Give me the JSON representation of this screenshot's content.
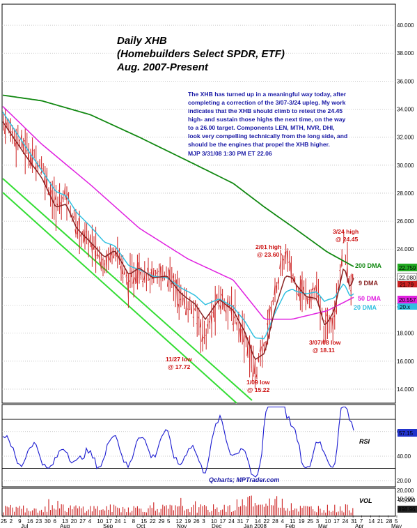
{
  "title": {
    "line1": "Daily XHB",
    "line2": "(Homebuilders Select SPDR, ETF)",
    "line3": "Aug. 2007-Present"
  },
  "commentary": [
    "The XHB has turned up in a meaningful way today, after",
    "completing a correction of the 3/07-3/24 upleg. My work",
    "indicates that the XHB should climb to retest the 24.45",
    "high- and sustain those highs the next time, on the way",
    "to a 26.00 target.  Components LEN, MTH, NVR, DHI,",
    "look very compelling technically from the long side, and",
    "should be the engines that propel the XHB higher.",
    "MJP  3/31/08  1:30 PM ET  22.06"
  ],
  "annotations": {
    "high_324_a": "3/24 high",
    "high_324_b": "@ 24.45",
    "high_201_a": "2/01 high",
    "high_201_b": "@ 23.60",
    "low_1127_a": "11/27 low",
    "low_1127_b": "@ 17.72",
    "low_109_a": "1/09 low",
    "low_109_b": "@ 15.22",
    "low_307_a": "3/07/08 low",
    "low_307_b": "@ 18.11",
    "dma200": "200 DMA",
    "dma9": "9 DMA",
    "dma50": "50 DMA",
    "dma20": "20 DMA"
  },
  "badges": {
    "dma200": "22.759",
    "price": "22.080",
    "dma9": "21.79",
    "dma50": "20.557",
    "dma20": "20.x",
    "rsi": "57.15",
    "vol_a": "10,000",
    "vol_b": "898.96"
  },
  "panels": {
    "rsi_label": "RSI",
    "vol_label": "VOL",
    "credit": "Qcharts; MPTrader.com"
  },
  "colors": {
    "price": "#cc2222",
    "dma200": "#118811",
    "dma9": "#882222",
    "dma50": "#e020e0",
    "dma20": "#30c0e0",
    "channel": "#33dd33",
    "rsi": "#1a1ad0",
    "volume": "#cc2222"
  },
  "chart_data": {
    "type": "line",
    "title": "Daily XHB (Homebuilders Select SPDR, ETF) Aug. 2007-Present",
    "price_axis": {
      "ylim": [
        13.0,
        41.5
      ],
      "ticks": [
        "40.000",
        "38.000",
        "36.000",
        "34.000",
        "32.000",
        "30.000",
        "28.000",
        "26.000",
        "24.000",
        "22.000",
        "20.000",
        "18.000",
        "16.000",
        "14.000"
      ]
    },
    "rsi_axis": {
      "ylim": [
        15,
        82
      ],
      "ticks": [
        "60.00",
        "40.00",
        "20.00"
      ],
      "levels": [
        70,
        30
      ]
    },
    "volume_axis": {
      "ticks": [
        "20,000",
        "10,000"
      ]
    },
    "x_axis": {
      "day_ticks": [
        "25",
        "2",
        "9",
        "16",
        "23",
        "30",
        "6",
        "13",
        "20",
        "27",
        "4",
        "10",
        "17",
        "24",
        "1",
        "8",
        "15",
        "22",
        "29",
        "5",
        "12",
        "19",
        "26",
        "3",
        "10",
        "17",
        "24",
        "31",
        "7",
        "14",
        "22",
        "28",
        "4",
        "11",
        "19",
        "25",
        "3",
        "10",
        "17",
        "24",
        "31",
        "7",
        "14",
        "21",
        "28",
        "5"
      ],
      "month_labels": [
        "Jul",
        "Aug",
        "Sep",
        "Oct",
        "Nov",
        "Dec",
        "Jan 2008",
        "Feb",
        "Mar",
        "Apr",
        "May"
      ]
    },
    "key_points": [
      {
        "date": "11/27/07",
        "label": "low",
        "value": 17.72
      },
      {
        "date": "1/09/08",
        "label": "low",
        "value": 15.22
      },
      {
        "date": "2/01/08",
        "label": "high",
        "value": 23.6
      },
      {
        "date": "3/07/08",
        "label": "low",
        "value": 18.11
      },
      {
        "date": "3/24/08",
        "label": "high",
        "value": 24.45
      },
      {
        "date": "3/31/08",
        "label": "last",
        "value": 22.06
      }
    ],
    "series": [
      {
        "name": "200 DMA",
        "x": [
          "Jul",
          "Aug",
          "Sep",
          "Oct",
          "Nov",
          "Dec",
          "Jan 2008",
          "Feb",
          "Mar",
          "3/31"
        ],
        "values": [
          35.0,
          34.6,
          33.6,
          32.0,
          30.3,
          28.7,
          27.0,
          25.6,
          23.8,
          22.76
        ]
      },
      {
        "name": "50 DMA",
        "x": [
          "Jul",
          "Aug",
          "Sep",
          "Oct",
          "Nov",
          "Dec",
          "Jan 2008",
          "Feb",
          "Mar",
          "3/31"
        ],
        "values": [
          34.2,
          31.5,
          28.6,
          25.5,
          23.3,
          21.8,
          19.0,
          19.0,
          19.6,
          20.56
        ]
      },
      {
        "name": "20 DMA",
        "x": [
          "Jul",
          "Aug",
          "Sep",
          "Oct",
          "Nov",
          "Dec",
          "Jan 2008",
          "Feb",
          "Mar",
          "3/31"
        ],
        "values": [
          34.0,
          29.5,
          26.0,
          22.5,
          21.3,
          20.0,
          17.8,
          20.8,
          21.0,
          20.4
        ]
      },
      {
        "name": "9 DMA",
        "x": [
          "Jul",
          "Aug",
          "Sep",
          "Oct",
          "Nov",
          "Dec",
          "Jan 2008",
          "Feb",
          "Mar",
          "3/31"
        ],
        "values": [
          33.0,
          28.0,
          24.5,
          22.6,
          21.0,
          19.8,
          16.0,
          21.7,
          19.0,
          21.79
        ]
      }
    ]
  }
}
